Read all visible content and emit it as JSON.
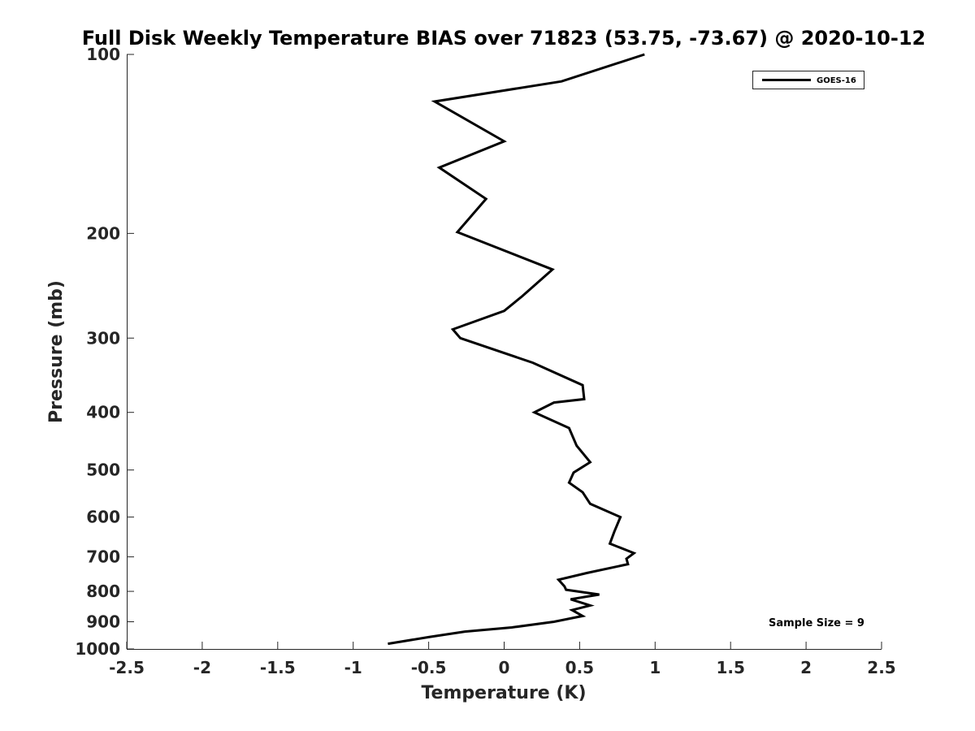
{
  "chart_data": {
    "type": "line",
    "title": "Full Disk Weekly Temperature BIAS over 71823 (53.75, -73.67) @ 2020-10-12",
    "xlabel": "Temperature (K)",
    "ylabel": "Pressure (mb)",
    "xlim": [
      -2.5,
      2.5
    ],
    "ylim": [
      100,
      1000
    ],
    "yscale": "log",
    "y_reversed": true,
    "xticks": [
      "-2.5",
      "-2",
      "-1.5",
      "-1",
      "-0.5",
      "0",
      "0.5",
      "1",
      "1.5",
      "2",
      "2.5"
    ],
    "yticks": [
      "100",
      "200",
      "300",
      "400",
      "500",
      "600",
      "700",
      "800",
      "900",
      "1000"
    ],
    "grid": false,
    "legend_position": "top-right",
    "series": [
      {
        "name": "GOES-16",
        "color": "#000000",
        "x": [
          0.93,
          0.38,
          -0.46,
          0.0,
          -0.43,
          -0.12,
          -0.31,
          0.32,
          0.12,
          0.0,
          -0.34,
          -0.29,
          0.19,
          0.52,
          0.53,
          0.33,
          0.2,
          0.43,
          0.48,
          0.57,
          0.46,
          0.43,
          0.52,
          0.57,
          0.77,
          0.73,
          0.7,
          0.86,
          0.81,
          0.82,
          0.55,
          0.36,
          0.4,
          0.41,
          0.63,
          0.44,
          0.57,
          0.45,
          0.52,
          0.33,
          0.05,
          -0.26,
          -0.5,
          -0.77
        ],
        "y": [
          100,
          111,
          120,
          140,
          155,
          175,
          199,
          230,
          255,
          270,
          290,
          300,
          330,
          360,
          380,
          385,
          400,
          425,
          455,
          485,
          505,
          525,
          545,
          570,
          600,
          635,
          665,
          690,
          705,
          720,
          745,
          765,
          785,
          795,
          810,
          825,
          845,
          860,
          880,
          900,
          920,
          935,
          955,
          980
        ]
      }
    ],
    "annotations": [
      "Sample Size = 9"
    ]
  }
}
